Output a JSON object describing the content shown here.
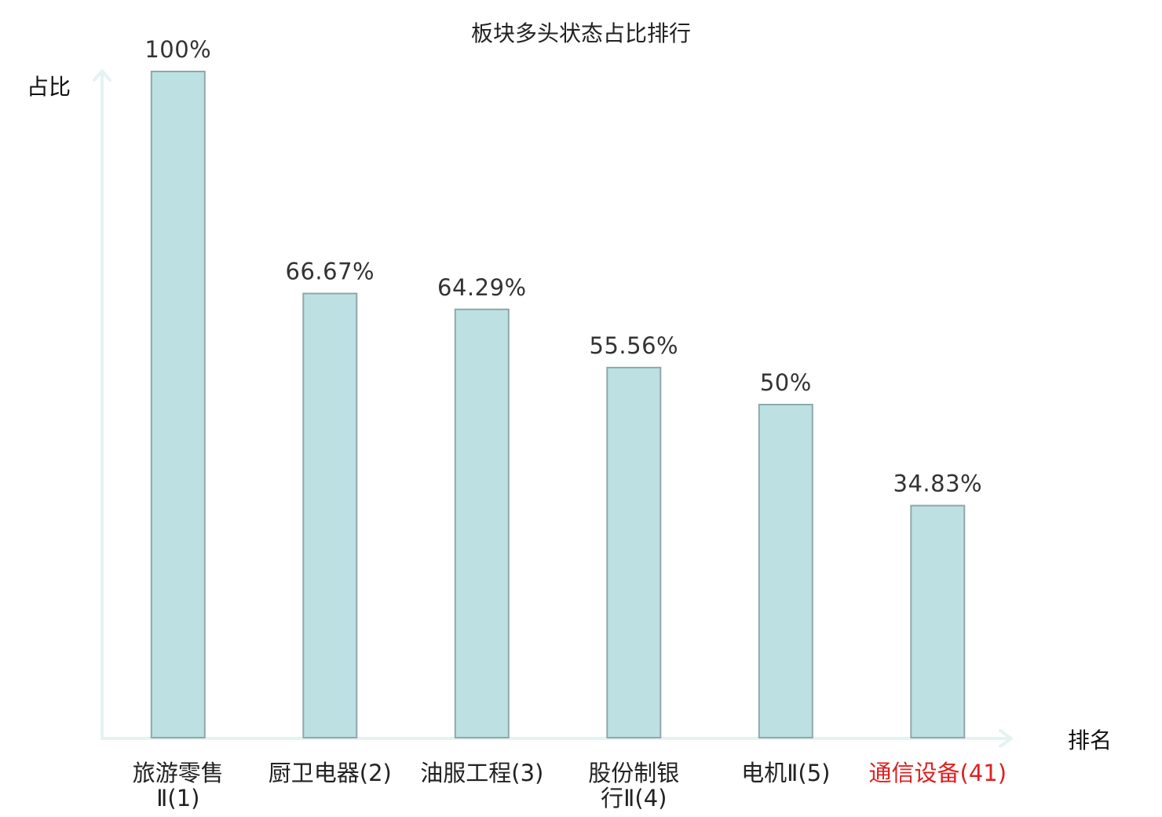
{
  "chart_data": {
    "type": "bar",
    "title": "板块多头状态占比排行",
    "ylabel": "占比",
    "xlabel": "排名",
    "ylim": [
      0,
      100
    ],
    "grid": false,
    "categories": [
      [
        "旅游零售",
        "Ⅱ(1)"
      ],
      [
        "厨卫电器(2)"
      ],
      [
        "油服工程(3)"
      ],
      [
        "股份制银",
        "行Ⅱ(4)"
      ],
      [
        "电机Ⅱ(5)"
      ],
      [
        "通信设备(41)"
      ]
    ],
    "values": [
      100,
      66.67,
      64.29,
      55.56,
      50,
      34.83
    ],
    "value_labels": [
      "100%",
      "66.67%",
      "64.29%",
      "55.56%",
      "50%",
      "34.83%"
    ],
    "highlight_index": 5,
    "colors": {
      "bar_fill": "#bde0e2",
      "bar_stroke": "#8ea8ab",
      "axis": "#e4f3f1",
      "highlight": "#e02020"
    }
  }
}
